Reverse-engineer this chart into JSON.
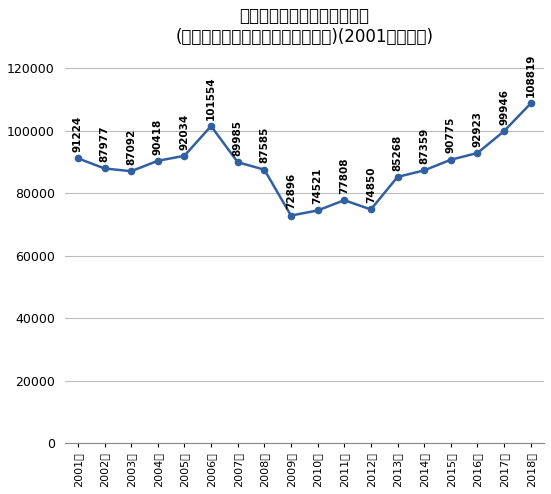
{
  "years": [
    "2001年",
    "2002年",
    "2003年",
    "2004年",
    "2005年",
    "2006年",
    "2007年",
    "2008年",
    "2009年",
    "2010年",
    "2011年",
    "2012年",
    "2013年",
    "2014年",
    "2015年",
    "2016年",
    "2017年",
    "2018年"
  ],
  "values": [
    91224,
    87977,
    87092,
    90418,
    92034,
    101554,
    89985,
    87585,
    72896,
    74521,
    77808,
    74850,
    85268,
    87359,
    90775,
    92923,
    99946,
    108819
  ],
  "title_line1": "給与所得者からの所得税税額",
  "title_line2": "(国税庁把握分、総額、年間、億円)(2001年分以降)",
  "line_color": "#3060a0",
  "marker_color": "#3060a0",
  "bg_color": "#ffffff",
  "grid_color": "#bbbbbb",
  "ylim": [
    0,
    125000
  ],
  "yticks": [
    0,
    20000,
    40000,
    60000,
    80000,
    100000,
    120000
  ],
  "label_fontsize": 7.5,
  "title_fontsize1": 12,
  "title_fontsize2": 11,
  "axis_fontsize": 8,
  "ytick_fontsize": 9
}
